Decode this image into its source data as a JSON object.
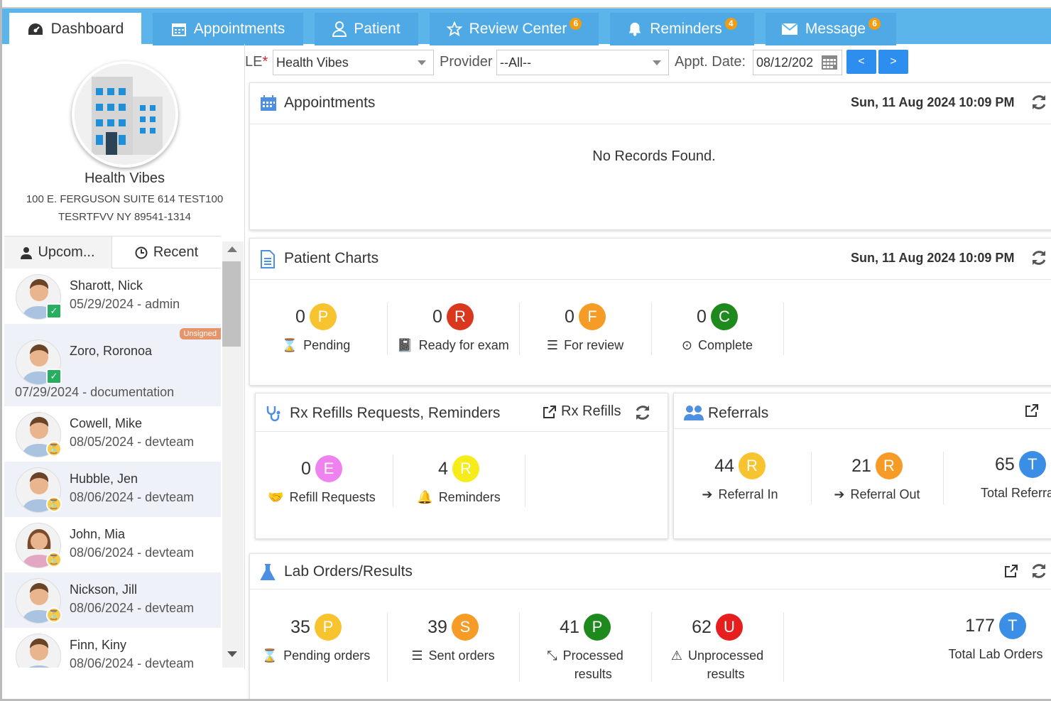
{
  "nav": {
    "tabs": [
      {
        "label": "Dashboard",
        "icon": "dashboard-icon",
        "active": true
      },
      {
        "label": "Appointments",
        "icon": "calendar-icon"
      },
      {
        "label": "Patient",
        "icon": "user-icon"
      },
      {
        "label": "Review Center",
        "icon": "star-icon",
        "badge": "6"
      },
      {
        "label": "Reminders",
        "icon": "bell-icon",
        "badge": "4"
      },
      {
        "label": "Message",
        "icon": "envelope-icon",
        "badge": "6"
      }
    ]
  },
  "org": {
    "name": "Health Vibes",
    "address1": "100 E. FERGUSON SUITE 614 TEST100",
    "address2": "TESRTFVV NY 89541-1314"
  },
  "patient_tabs": {
    "upcoming": "Upcom...",
    "recent": "Recent"
  },
  "patients": [
    {
      "name": "Sharott, Nick",
      "date": "05/29/2024 - admin",
      "status": "checked"
    },
    {
      "name": "Zoro, Roronoa",
      "date": "07/29/2024 - documentation",
      "status": "checked",
      "tag": "Unsigned"
    },
    {
      "name": "Cowell, Mike",
      "date": "08/05/2024 - devteam",
      "status": "pending"
    },
    {
      "name": "Hubble, Jen",
      "date": "08/06/2024 - devteam",
      "status": "pending"
    },
    {
      "name": "John, Mia",
      "date": "08/06/2024 - devteam",
      "status": "pending"
    },
    {
      "name": "Nickson, Jill",
      "date": "08/06/2024 - devteam",
      "status": "pending"
    },
    {
      "name": "Finn, Kiny",
      "date": "08/06/2024 - devteam",
      "status": "pending"
    }
  ],
  "filter": {
    "le_label": "LE",
    "le_required": "*",
    "le_value": "Health Vibes",
    "provider_label": "Provider",
    "provider_value": "--All--",
    "date_label": "Appt. Date:",
    "date_value": "08/12/202",
    "prev": "<",
    "next": ">"
  },
  "appointments": {
    "title": "Appointments",
    "date": "Sun, 11 Aug 2024 10:09 PM",
    "empty": "No Records Found."
  },
  "charts": {
    "title": "Patient Charts",
    "date": "Sun, 11 Aug 2024 10:09 PM",
    "stats": [
      {
        "num": "0",
        "badge": "P",
        "color": "#f7c32e",
        "label": "Pending",
        "icon": "hourglass-icon"
      },
      {
        "num": "0",
        "badge": "R",
        "color": "#d9381e",
        "label": "Ready for exam",
        "icon": "book-icon"
      },
      {
        "num": "0",
        "badge": "F",
        "color": "#f59b26",
        "label": "For review",
        "icon": "list-icon"
      },
      {
        "num": "0",
        "badge": "C",
        "color": "#1e8a1e",
        "label": "Complete",
        "icon": "check-circle-icon"
      }
    ]
  },
  "rx": {
    "title": "Rx Refills Requests, Reminders",
    "link": "Rx Refills",
    "stats": [
      {
        "num": "0",
        "badge": "E",
        "color": "#ee82ee",
        "label": "Refill Requests",
        "icon": "handshake-icon"
      },
      {
        "num": "4",
        "badge": "R",
        "color": "#f5ec1a",
        "label": "Reminders",
        "icon": "bell-outline-icon"
      }
    ]
  },
  "referrals": {
    "title": "Referrals",
    "stats": [
      {
        "num": "44",
        "badge": "R",
        "color": "#f7c32e",
        "label": "Referral In",
        "icon": "arrow-in-icon"
      },
      {
        "num": "21",
        "badge": "R",
        "color": "#f59b26",
        "label": "Referral Out",
        "icon": "arrow-out-icon"
      },
      {
        "num": "65",
        "badge": "T",
        "color": "#3a8ee6",
        "label": "Total Referra",
        "icon": ""
      }
    ]
  },
  "lab": {
    "title": "Lab Orders/Results",
    "stats": [
      {
        "num": "35",
        "badge": "P",
        "color": "#f7c32e",
        "label": "Pending orders",
        "icon": "hourglass-icon"
      },
      {
        "num": "39",
        "badge": "S",
        "color": "#f59b26",
        "label": "Sent orders",
        "icon": "list-icon"
      },
      {
        "num": "41",
        "badge": "P",
        "color": "#1e8a1e",
        "label1": "Processed",
        "label2": "results",
        "icon": "compress-icon"
      },
      {
        "num": "62",
        "badge": "U",
        "color": "#e61e1e",
        "label1": "Unprocessed",
        "label2": "results",
        "icon": "warning-icon"
      },
      {
        "num": "177",
        "badge": "T",
        "color": "#3a8ee6",
        "label": "Total Lab Orders",
        "icon": ""
      }
    ]
  }
}
